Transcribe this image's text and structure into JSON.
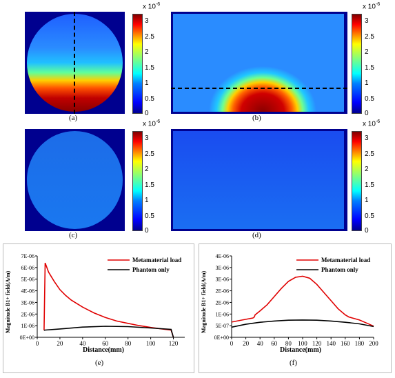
{
  "figure": {
    "colorbar": {
      "exponent_base": "x 10",
      "exponent_power": "-6",
      "ticks": [
        "3",
        "2.5",
        "2",
        "1.5",
        "1",
        "0.5",
        "0"
      ]
    },
    "captions": {
      "a": "(a)",
      "b": "(b)",
      "c": "(c)",
      "d": "(d)",
      "e": "(e)",
      "f": "(f)"
    },
    "colors": {
      "background": "#00008f",
      "plot_red": "#e00000",
      "plot_black": "#000000"
    }
  },
  "chart_data": [
    {
      "type": "line",
      "panel": "e",
      "title": "",
      "xlabel": "Distance(mm)",
      "ylabel": "Magnitude B1+ field(A/m)",
      "xlim": [
        0,
        130
      ],
      "ylim": [
        0,
        7e-06
      ],
      "xticks": [
        "0",
        "20",
        "40",
        "60",
        "80",
        "100",
        "120"
      ],
      "yticks": [
        "0E+00",
        "1E-06",
        "2E-06",
        "3E-06",
        "4E-06",
        "5E-06",
        "6E-06",
        "7E-06"
      ],
      "legend_position": "top-right",
      "series": [
        {
          "name": "Metamaterial load",
          "color": "#e00000",
          "x": [
            6,
            7,
            10,
            15,
            20,
            25,
            30,
            40,
            50,
            60,
            70,
            80,
            90,
            100,
            110,
            118,
            120
          ],
          "y": [
            6e-07,
            6.4e-06,
            5.6e-06,
            4.8e-06,
            4.1e-06,
            3.6e-06,
            3.2e-06,
            2.6e-06,
            2.1e-06,
            1.7e-06,
            1.4e-06,
            1.2e-06,
            1e-06,
            8.5e-07,
            7.2e-07,
            6.2e-07,
            0
          ]
        },
        {
          "name": "Phantom only",
          "color": "#000000",
          "x": [
            6,
            7,
            20,
            40,
            60,
            80,
            100,
            118,
            120
          ],
          "y": [
            6e-07,
            6.2e-07,
            7.2e-07,
            8.8e-07,
            9.5e-07,
            9.2e-07,
            8e-07,
            6.8e-07,
            0
          ]
        }
      ]
    },
    {
      "type": "line",
      "panel": "f",
      "title": "",
      "xlabel": "Distance(mm)",
      "ylabel": "Magnitude B1+ field(A/m)",
      "xlim": [
        0,
        200
      ],
      "ylim": [
        0,
        4e-06
      ],
      "xticks": [
        "0",
        "20",
        "40",
        "60",
        "80",
        "100",
        "120",
        "140",
        "160",
        "180",
        "200"
      ],
      "yticks": [
        "0E+00",
        "5E-07",
        "1E-06",
        "2E-06",
        "2E-06",
        "3E-06",
        "3E-06",
        "4E-06"
      ],
      "legend_position": "top-right",
      "series": [
        {
          "name": "Metamaterial load",
          "color": "#e00000",
          "x": [
            0,
            15,
            30,
            32,
            33,
            40,
            50,
            60,
            70,
            80,
            90,
            100,
            110,
            120,
            130,
            140,
            150,
            160,
            165,
            170,
            180,
            190,
            200
          ],
          "y": [
            7.5e-07,
            8.5e-07,
            9.5e-07,
            1e-06,
            1.1e-06,
            1.3e-06,
            1.6e-06,
            2e-06,
            2.4e-06,
            2.75e-06,
            2.95e-06,
            3e-06,
            2.9e-06,
            2.6e-06,
            2.2e-06,
            1.8e-06,
            1.4e-06,
            1.1e-06,
            1e-06,
            9.5e-07,
            8.5e-07,
            7e-07,
            5.5e-07
          ]
        },
        {
          "name": "Phantom only",
          "color": "#000000",
          "x": [
            0,
            20,
            40,
            60,
            80,
            100,
            120,
            140,
            160,
            180,
            200
          ],
          "y": [
            5e-07,
            6.4e-07,
            7.4e-07,
            8e-07,
            8.4e-07,
            8.5e-07,
            8.4e-07,
            8e-07,
            7.4e-07,
            6.6e-07,
            5.3e-07
          ]
        }
      ]
    }
  ]
}
